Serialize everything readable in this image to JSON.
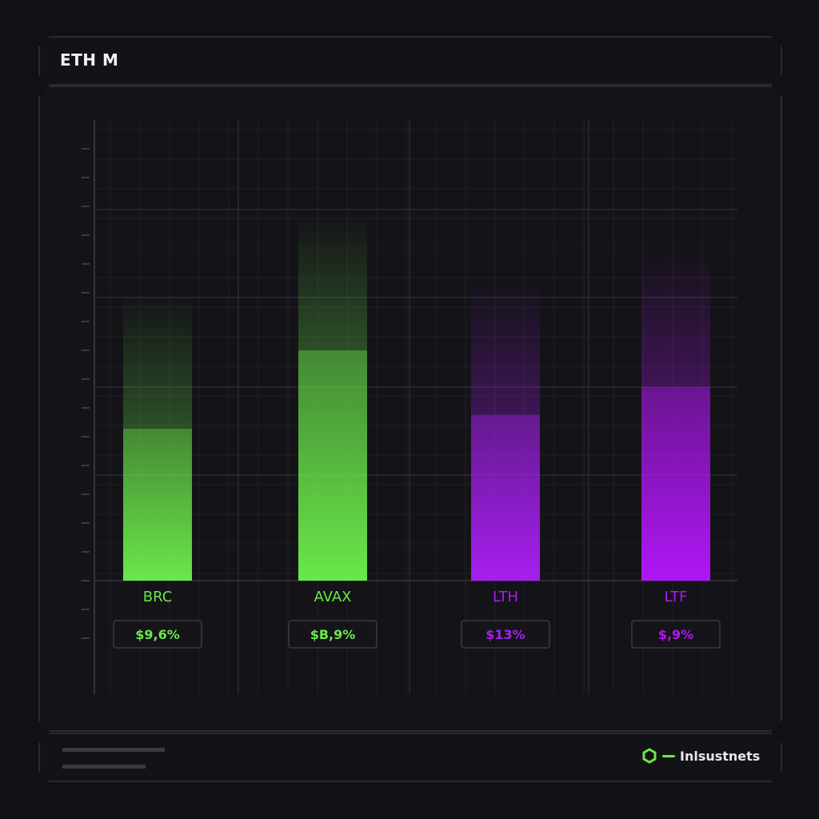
{
  "header": {
    "title": "ETH M"
  },
  "chart_data": {
    "type": "bar",
    "title": "ETH M",
    "categories": [
      "BRC",
      "AVAX",
      "LTH",
      "LTF"
    ],
    "values": [
      33,
      50,
      36,
      42
    ],
    "value_labels": [
      "$9,6%",
      "$B,9%",
      "$13%",
      "$,9%"
    ],
    "ylim": [
      0,
      100
    ],
    "grid": true,
    "colors": [
      "#6ae84a",
      "#6ae84a",
      "#a61ff0",
      "#b016f5"
    ]
  },
  "footer": {
    "brand": "Inlsustnets"
  },
  "colors": {
    "green": "#6ae84a",
    "purple": "#b016f5",
    "background": "#111015"
  }
}
